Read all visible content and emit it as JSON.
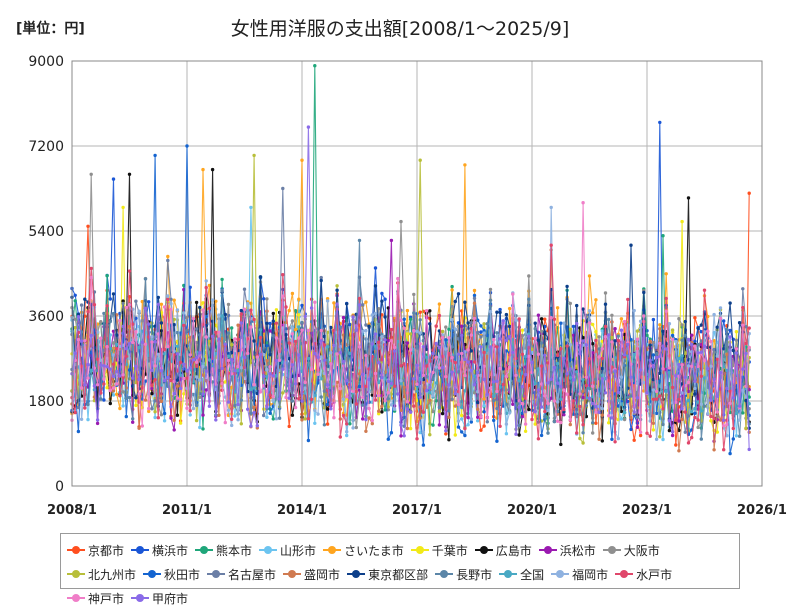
{
  "unit_label": "[単位：円]",
  "chart_data": {
    "type": "line",
    "title": "女性用洋服の支出額[2008/1～2025/9]",
    "xlabel": "",
    "ylabel": "円",
    "ylim": [
      0,
      9000
    ],
    "yticks": [
      0,
      1800,
      3600,
      5400,
      7200,
      9000
    ],
    "xlim": [
      2008.0,
      2026.0
    ],
    "xticks": [
      {
        "value": 2008.0,
        "label": "2008/1"
      },
      {
        "value": 2011.0,
        "label": "2011/1"
      },
      {
        "value": 2014.0,
        "label": "2014/1"
      },
      {
        "value": 2017.0,
        "label": "2017/1"
      },
      {
        "value": 2020.0,
        "label": "2020/1"
      },
      {
        "value": 2023.0,
        "label": "2023/1"
      },
      {
        "value": 2026.0,
        "label": "2026/1"
      }
    ],
    "grid": true,
    "legend_position": "bottom",
    "period": {
      "start": "2008/1",
      "end": "2025/9",
      "months": 213
    },
    "series": [
      {
        "name": "京都市",
        "color": "#ff4f1f",
        "base": 2700,
        "volatility": 1100,
        "seed": 11,
        "peaks": [
          {
            "month": 212,
            "value": 6200
          },
          {
            "month": 5,
            "value": 5500
          }
        ]
      },
      {
        "name": "横浜市",
        "color": "#1a56d6",
        "base": 2900,
        "volatility": 1100,
        "seed": 23,
        "peaks": [
          {
            "month": 184,
            "value": 7700
          },
          {
            "month": 13,
            "value": 6500
          }
        ]
      },
      {
        "name": "熊本市",
        "color": "#1fa67a",
        "base": 2700,
        "volatility": 1050,
        "seed": 37,
        "peaks": [
          {
            "month": 76,
            "value": 8900
          },
          {
            "month": 185,
            "value": 5300
          }
        ]
      },
      {
        "name": "山形市",
        "color": "#6cc4f0",
        "base": 2500,
        "volatility": 1000,
        "seed": 41,
        "peaks": [
          {
            "month": 56,
            "value": 5900
          }
        ]
      },
      {
        "name": "さいたま市",
        "color": "#ffa51f",
        "base": 2900,
        "volatility": 1100,
        "seed": 53,
        "peaks": [
          {
            "month": 72,
            "value": 6900
          },
          {
            "month": 41,
            "value": 6700
          },
          {
            "month": 123,
            "value": 6800
          }
        ]
      },
      {
        "name": "千葉市",
        "color": "#f2ea18",
        "base": 2700,
        "volatility": 1050,
        "seed": 67,
        "peaks": [
          {
            "month": 16,
            "value": 5900
          },
          {
            "month": 191,
            "value": 5600
          }
        ]
      },
      {
        "name": "広島市",
        "color": "#111111",
        "base": 2600,
        "volatility": 1050,
        "seed": 71,
        "peaks": [
          {
            "month": 18,
            "value": 6600
          },
          {
            "month": 44,
            "value": 6700
          },
          {
            "month": 193,
            "value": 6100
          }
        ]
      },
      {
        "name": "浜松市",
        "color": "#9a1ab0",
        "base": 2600,
        "volatility": 1000,
        "seed": 83,
        "peaks": [
          {
            "month": 100,
            "value": 5200
          }
        ]
      },
      {
        "name": "大阪市",
        "color": "#8f8f8f",
        "base": 2800,
        "volatility": 1050,
        "seed": 97,
        "peaks": [
          {
            "month": 6,
            "value": 6600
          },
          {
            "month": 103,
            "value": 5600
          }
        ]
      },
      {
        "name": "北九州市",
        "color": "#b8bf3a",
        "base": 2600,
        "volatility": 1000,
        "seed": 101,
        "peaks": [
          {
            "month": 57,
            "value": 7000
          },
          {
            "month": 109,
            "value": 6900
          }
        ]
      },
      {
        "name": "秋田市",
        "color": "#1464d0",
        "base": 2500,
        "volatility": 1050,
        "seed": 113,
        "peaks": [
          {
            "month": 36,
            "value": 7200
          },
          {
            "month": 26,
            "value": 7000
          }
        ]
      },
      {
        "name": "名古屋市",
        "color": "#6b7fa6",
        "base": 2800,
        "volatility": 1050,
        "seed": 127,
        "peaks": [
          {
            "month": 66,
            "value": 6300
          }
        ]
      },
      {
        "name": "盛岡市",
        "color": "#d07a50",
        "base": 2500,
        "volatility": 1000,
        "seed": 131,
        "peaks": [
          {
            "month": 150,
            "value": 5000
          }
        ]
      },
      {
        "name": "東京都区部",
        "color": "#0d3f8a",
        "base": 3000,
        "volatility": 1050,
        "seed": 139,
        "peaks": [
          {
            "month": 175,
            "value": 5100
          }
        ]
      },
      {
        "name": "長野市",
        "color": "#5b86a8",
        "base": 2600,
        "volatility": 1000,
        "seed": 149,
        "peaks": [
          {
            "month": 90,
            "value": 5200
          }
        ]
      },
      {
        "name": "全国",
        "color": "#49a9c4",
        "base": 2600,
        "volatility": 600,
        "seed": 157,
        "peaks": []
      },
      {
        "name": "福岡市",
        "color": "#8fb2e0",
        "base": 2700,
        "volatility": 1050,
        "seed": 163,
        "peaks": [
          {
            "month": 150,
            "value": 5900
          }
        ]
      },
      {
        "name": "水戸市",
        "color": "#e0476b",
        "base": 2600,
        "volatility": 1050,
        "seed": 173,
        "peaks": [
          {
            "month": 150,
            "value": 5100
          }
        ]
      },
      {
        "name": "神戸市",
        "color": "#f07ec8",
        "base": 2700,
        "volatility": 1050,
        "seed": 181,
        "peaks": [
          {
            "month": 160,
            "value": 6000
          }
        ]
      },
      {
        "name": "甲府市",
        "color": "#8a6be8",
        "base": 2600,
        "volatility": 1050,
        "seed": 191,
        "peaks": [
          {
            "month": 74,
            "value": 7600
          }
        ]
      }
    ]
  }
}
